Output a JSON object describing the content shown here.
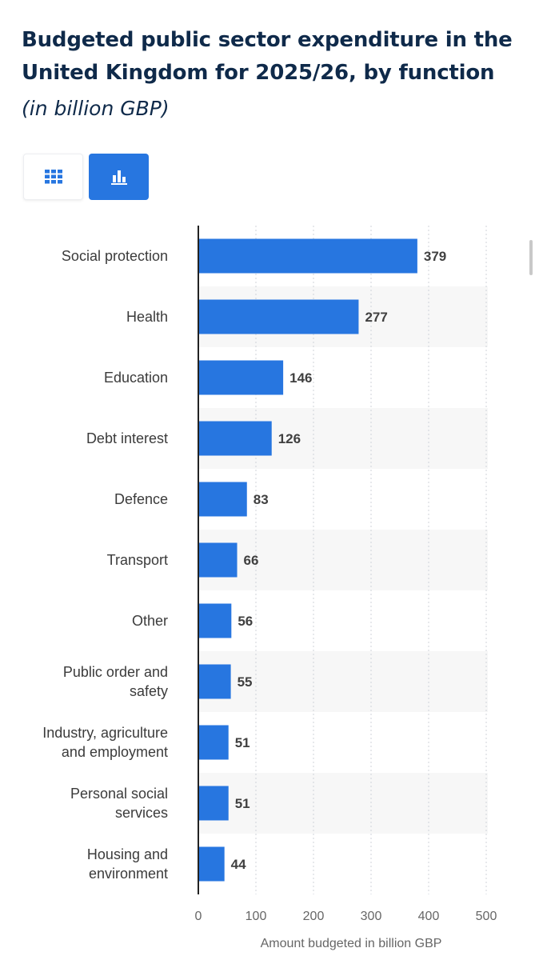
{
  "header": {
    "title": "Budgeted public sector expenditure in the United Kingdom for 2025/26, by function",
    "subtitle": "(in billion GBP)"
  },
  "toolbar": {
    "table_icon": "grid-icon",
    "chart_icon": "bar-chart-icon"
  },
  "colors": {
    "bar": "#2776e0",
    "band": "#f7f7f7",
    "title": "#0f2a4a"
  },
  "chart_data": {
    "type": "bar",
    "orientation": "horizontal",
    "categories": [
      [
        "Social protection"
      ],
      [
        "Health"
      ],
      [
        "Education"
      ],
      [
        "Debt interest"
      ],
      [
        "Defence"
      ],
      [
        "Transport"
      ],
      [
        "Other"
      ],
      [
        "Public order and",
        "safety"
      ],
      [
        "Industry, agriculture",
        "and employment"
      ],
      [
        "Personal social",
        "services"
      ],
      [
        "Housing and",
        "environment"
      ]
    ],
    "values": [
      379,
      277,
      146,
      126,
      83,
      66,
      56,
      55,
      51,
      51,
      44
    ],
    "xlim": [
      0,
      500
    ],
    "xticks": [
      0,
      100,
      200,
      300,
      400,
      500
    ],
    "xlabel": "Amount budgeted in billion GBP",
    "ylabel": "",
    "grid": true,
    "legend": "none"
  }
}
